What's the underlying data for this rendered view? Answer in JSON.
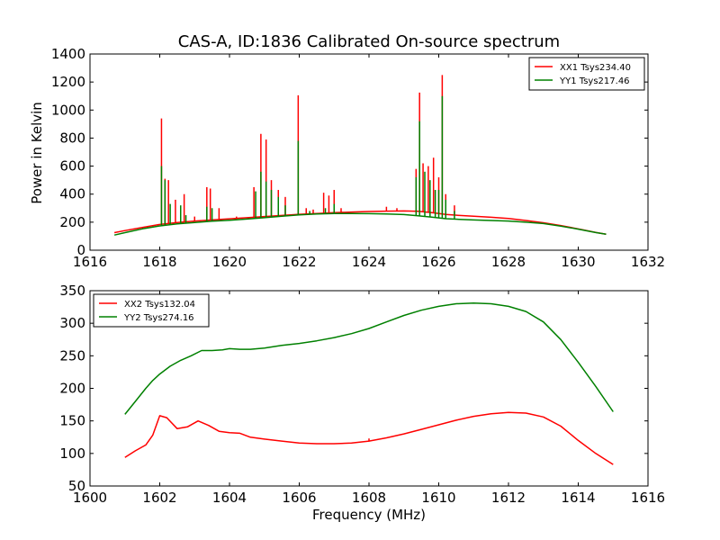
{
  "chart_data": [
    {
      "type": "line",
      "title": "CAS-A, ID:1836 Calibrated On-source spectrum",
      "xlabel": "",
      "ylabel": "Power in Kelvin",
      "xlim": [
        1616,
        1632
      ],
      "ylim": [
        0,
        1400
      ],
      "xticks": [
        1616,
        1618,
        1620,
        1622,
        1624,
        1626,
        1628,
        1630,
        1632
      ],
      "yticks": [
        0,
        200,
        400,
        600,
        800,
        1000,
        1200,
        1400
      ],
      "legend_position": "top-right",
      "series": [
        {
          "name": "XX1 Tsys234.40",
          "color": "#ff0000",
          "x": [
            1616.7,
            1617.0,
            1617.5,
            1617.98,
            1618.5,
            1619.0,
            1619.5,
            1620.0,
            1620.5,
            1621.0,
            1621.5,
            1622.0,
            1622.5,
            1623.0,
            1623.5,
            1624.0,
            1624.5,
            1625.0,
            1625.4,
            1625.8,
            1626.2,
            1626.6,
            1627.0,
            1627.5,
            1628.0,
            1628.5,
            1629.0,
            1629.5,
            1630.0,
            1630.5,
            1630.8
          ],
          "y": [
            125,
            140,
            162,
            183,
            198,
            208,
            216,
            224,
            232,
            240,
            248,
            256,
            262,
            268,
            272,
            276,
            279,
            280,
            278,
            268,
            255,
            248,
            242,
            235,
            226,
            212,
            196,
            176,
            152,
            127,
            114
          ],
          "spikes": [
            {
              "x": 1618.05,
              "y": 940
            },
            {
              "x": 1618.15,
              "y": 510
            },
            {
              "x": 1618.25,
              "y": 500
            },
            {
              "x": 1618.45,
              "y": 360
            },
            {
              "x": 1618.7,
              "y": 400
            },
            {
              "x": 1619.0,
              "y": 240
            },
            {
              "x": 1619.35,
              "y": 450
            },
            {
              "x": 1619.45,
              "y": 440
            },
            {
              "x": 1619.7,
              "y": 300
            },
            {
              "x": 1620.2,
              "y": 240
            },
            {
              "x": 1620.7,
              "y": 450
            },
            {
              "x": 1620.9,
              "y": 830
            },
            {
              "x": 1621.05,
              "y": 790
            },
            {
              "x": 1621.2,
              "y": 500
            },
            {
              "x": 1621.4,
              "y": 430
            },
            {
              "x": 1621.6,
              "y": 380
            },
            {
              "x": 1621.97,
              "y": 1105
            },
            {
              "x": 1622.2,
              "y": 300
            },
            {
              "x": 1622.4,
              "y": 290
            },
            {
              "x": 1622.7,
              "y": 410
            },
            {
              "x": 1622.85,
              "y": 390
            },
            {
              "x": 1623.0,
              "y": 430
            },
            {
              "x": 1623.2,
              "y": 300
            },
            {
              "x": 1624.5,
              "y": 310
            },
            {
              "x": 1624.8,
              "y": 300
            },
            {
              "x": 1625.35,
              "y": 580
            },
            {
              "x": 1625.45,
              "y": 1125
            },
            {
              "x": 1625.55,
              "y": 620
            },
            {
              "x": 1625.7,
              "y": 600
            },
            {
              "x": 1625.85,
              "y": 660
            },
            {
              "x": 1626.0,
              "y": 520
            },
            {
              "x": 1626.1,
              "y": 1250
            },
            {
              "x": 1626.2,
              "y": 400
            },
            {
              "x": 1626.45,
              "y": 320
            }
          ]
        },
        {
          "name": "YY1 Tsys217.46",
          "color": "#008000",
          "x": [
            1616.7,
            1617.0,
            1617.5,
            1617.98,
            1618.5,
            1619.0,
            1619.5,
            1620.0,
            1620.5,
            1621.0,
            1621.5,
            1622.0,
            1622.5,
            1623.0,
            1623.5,
            1624.0,
            1624.5,
            1625.0,
            1625.4,
            1625.8,
            1626.2,
            1626.6,
            1627.0,
            1627.5,
            1628.0,
            1628.5,
            1629.0,
            1629.5,
            1630.0,
            1630.5,
            1630.8
          ],
          "y": [
            108,
            125,
            152,
            173,
            188,
            198,
            207,
            214,
            222,
            232,
            242,
            252,
            258,
            262,
            262,
            261,
            258,
            254,
            245,
            236,
            225,
            220,
            216,
            212,
            208,
            200,
            190,
            172,
            150,
            126,
            114
          ],
          "spikes": [
            {
              "x": 1618.05,
              "y": 600
            },
            {
              "x": 1618.15,
              "y": 500
            },
            {
              "x": 1618.3,
              "y": 330
            },
            {
              "x": 1618.6,
              "y": 320
            },
            {
              "x": 1618.75,
              "y": 250
            },
            {
              "x": 1619.35,
              "y": 310
            },
            {
              "x": 1619.5,
              "y": 300
            },
            {
              "x": 1620.75,
              "y": 420
            },
            {
              "x": 1620.9,
              "y": 560
            },
            {
              "x": 1621.05,
              "y": 490
            },
            {
              "x": 1621.2,
              "y": 430
            },
            {
              "x": 1621.4,
              "y": 380
            },
            {
              "x": 1621.6,
              "y": 320
            },
            {
              "x": 1621.97,
              "y": 780
            },
            {
              "x": 1622.3,
              "y": 280
            },
            {
              "x": 1622.75,
              "y": 300
            },
            {
              "x": 1623.0,
              "y": 330
            },
            {
              "x": 1625.35,
              "y": 520
            },
            {
              "x": 1625.45,
              "y": 920
            },
            {
              "x": 1625.6,
              "y": 560
            },
            {
              "x": 1625.75,
              "y": 500
            },
            {
              "x": 1625.9,
              "y": 430
            },
            {
              "x": 1626.0,
              "y": 430
            },
            {
              "x": 1626.1,
              "y": 1100
            },
            {
              "x": 1626.2,
              "y": 360
            },
            {
              "x": 1626.45,
              "y": 280
            }
          ]
        }
      ]
    },
    {
      "type": "line",
      "title": "",
      "xlabel": "Frequency (MHz)",
      "ylabel": "",
      "xlim": [
        1600,
        1616
      ],
      "ylim": [
        50,
        350
      ],
      "xticks": [
        1600,
        1602,
        1604,
        1606,
        1608,
        1610,
        1612,
        1614,
        1616
      ],
      "yticks": [
        50,
        100,
        150,
        200,
        250,
        300,
        350
      ],
      "legend_position": "top-left",
      "series": [
        {
          "name": "XX2 Tsys132.04",
          "color": "#ff0000",
          "x": [
            1601.0,
            1601.3,
            1601.6,
            1601.8,
            1602.0,
            1602.2,
            1602.5,
            1602.8,
            1603.1,
            1603.4,
            1603.7,
            1604.0,
            1604.3,
            1604.6,
            1605.0,
            1605.5,
            1606.0,
            1606.5,
            1607.0,
            1607.5,
            1608.0,
            1608.5,
            1609.0,
            1609.5,
            1610.0,
            1610.5,
            1611.0,
            1611.5,
            1612.0,
            1612.5,
            1613.0,
            1613.5,
            1614.0,
            1614.5,
            1615.0
          ],
          "y": [
            94,
            104,
            113,
            128,
            158,
            155,
            138,
            141,
            150,
            143,
            134,
            132,
            131,
            125,
            122,
            119,
            116,
            115,
            115,
            116,
            119,
            124,
            130,
            137,
            144,
            151,
            157,
            161,
            163,
            162,
            156,
            142,
            120,
            100,
            83
          ],
          "spikes": [
            {
              "x": 1608.0,
              "y": 123
            }
          ]
        },
        {
          "name": "YY2 Tsys274.16",
          "color": "#008000",
          "x": [
            1601.0,
            1601.3,
            1601.6,
            1601.8,
            1602.0,
            1602.3,
            1602.6,
            1602.9,
            1603.2,
            1603.5,
            1603.8,
            1604.0,
            1604.3,
            1604.6,
            1605.0,
            1605.5,
            1606.0,
            1606.5,
            1607.0,
            1607.5,
            1608.0,
            1608.5,
            1609.0,
            1609.5,
            1610.0,
            1610.5,
            1611.0,
            1611.5,
            1612.0,
            1612.5,
            1613.0,
            1613.5,
            1614.0,
            1614.5,
            1615.0
          ],
          "y": [
            160,
            180,
            200,
            212,
            222,
            234,
            243,
            250,
            258,
            258,
            259,
            261,
            260,
            260,
            262,
            266,
            269,
            273,
            278,
            284,
            292,
            302,
            312,
            320,
            326,
            330,
            331,
            330,
            326,
            318,
            302,
            275,
            240,
            203,
            164
          ],
          "spikes": []
        }
      ]
    }
  ]
}
